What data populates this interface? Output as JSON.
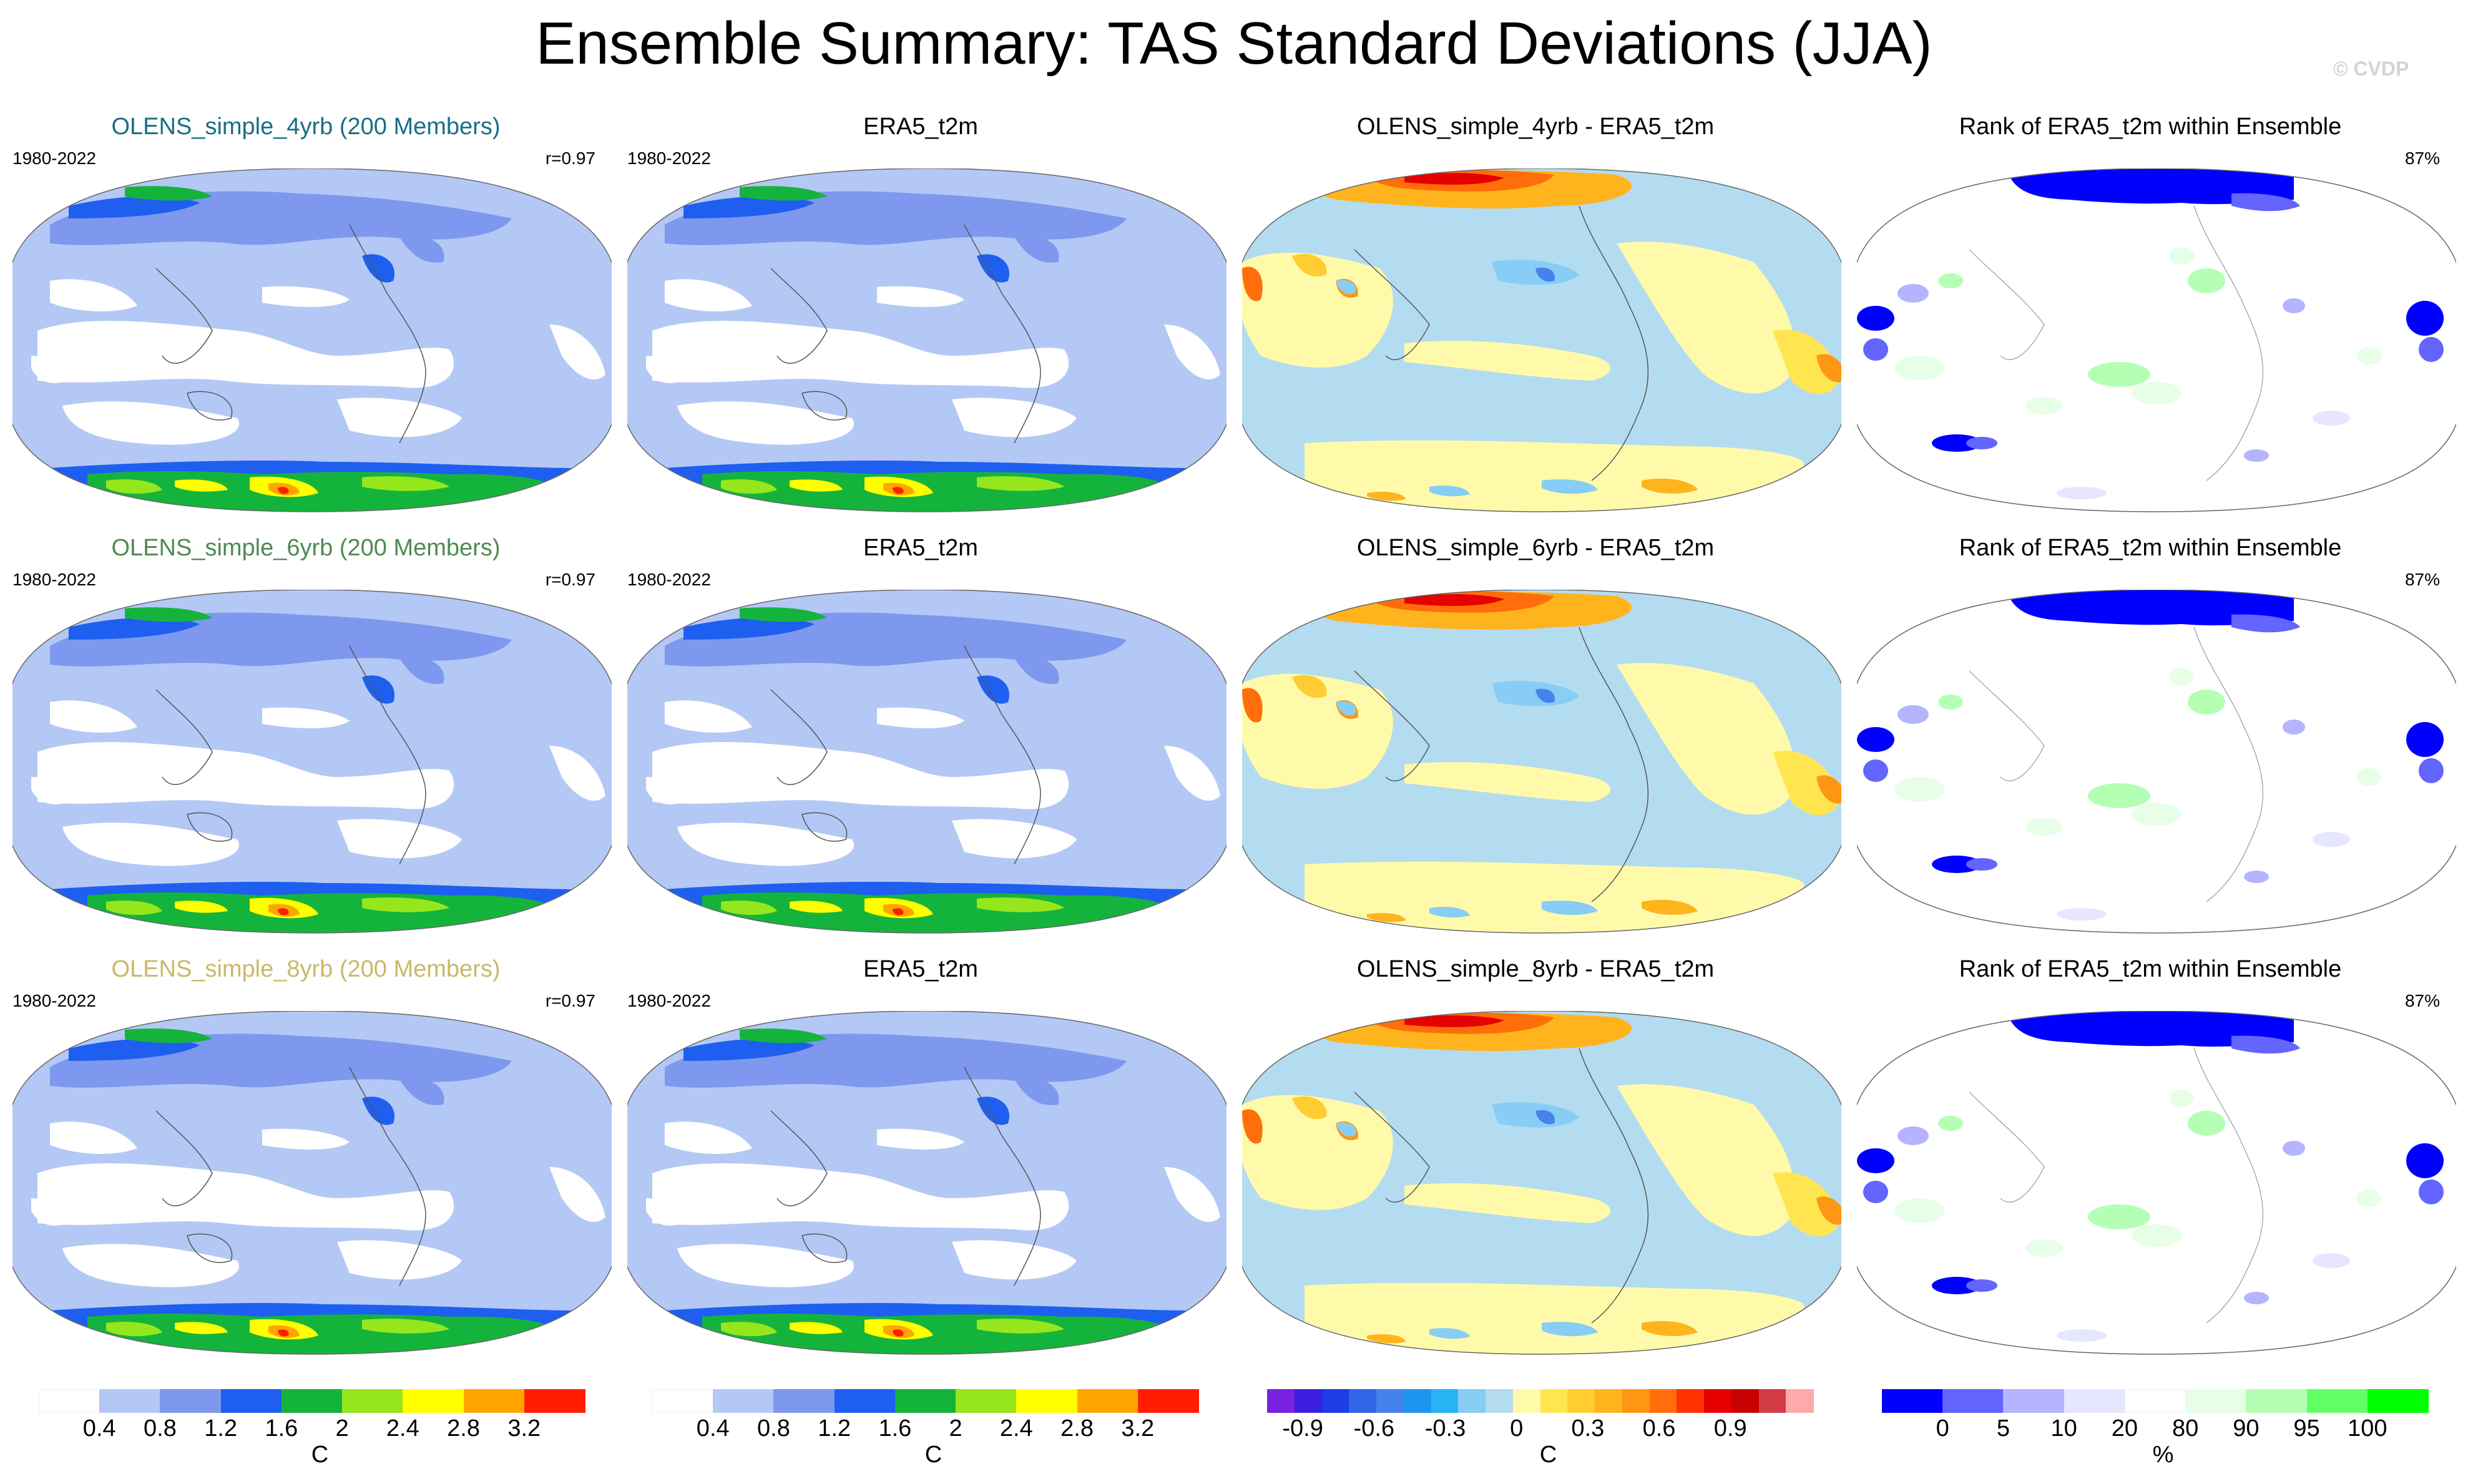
{
  "title": "Ensemble Summary: TAS Standard Deviations (JJA)",
  "copyright": "© CVDP",
  "colors": {
    "title_4yrb": "#1a6e86",
    "title_6yrb": "#4f8a52",
    "title_8yrb": "#c9b86a",
    "ocean_low": "#ffffff",
    "land_line": "#555555"
  },
  "rows": [
    {
      "model_title": "OLENS_simple_4yrb (200 Members)",
      "period_model": "1980-2022",
      "corr": "r=0.97",
      "obs_title": "ERA5_t2m",
      "period_obs": "1980-2022",
      "diff_title": "OLENS_simple_4yrb - ERA5_t2m",
      "rank_title": "Rank of ERA5_t2m within Ensemble",
      "rank_pct": "87%"
    },
    {
      "model_title": "OLENS_simple_6yrb (200 Members)",
      "period_model": "1980-2022",
      "corr": "r=0.97",
      "obs_title": "ERA5_t2m",
      "period_obs": "1980-2022",
      "diff_title": "OLENS_simple_6yrb - ERA5_t2m",
      "rank_title": "Rank of ERA5_t2m within Ensemble",
      "rank_pct": "87%"
    },
    {
      "model_title": "OLENS_simple_8yrb (200 Members)",
      "period_model": "1980-2022",
      "corr": "r=0.97",
      "obs_title": "ERA5_t2m",
      "period_obs": "1980-2022",
      "diff_title": "OLENS_simple_8yrb - ERA5_t2m",
      "rank_title": "Rank of ERA5_t2m within Ensemble",
      "rank_pct": "87%"
    }
  ],
  "colorbars": [
    {
      "name": "std",
      "colors": [
        "#ffffff",
        "#b4c8f5",
        "#7d98ee",
        "#1e5ff0",
        "#14b43c",
        "#96e61e",
        "#ffff00",
        "#ffa500",
        "#ff1e00"
      ],
      "ticks": [
        "0.4",
        "0.8",
        "1.2",
        "1.6",
        "2",
        "2.4",
        "2.8",
        "3.2"
      ],
      "unit": "C"
    },
    {
      "name": "std2",
      "colors": [
        "#ffffff",
        "#b4c8f5",
        "#7d98ee",
        "#1e5ff0",
        "#14b43c",
        "#96e61e",
        "#ffff00",
        "#ffa500",
        "#ff1e00"
      ],
      "ticks": [
        "0.4",
        "0.8",
        "1.2",
        "1.6",
        "2",
        "2.4",
        "2.8",
        "3.2"
      ],
      "unit": "C"
    },
    {
      "name": "diff",
      "colors": [
        "#7a20e0",
        "#3c1ee0",
        "#1e3ce6",
        "#3264e6",
        "#4682eb",
        "#1e96f0",
        "#28b4f5",
        "#87cdf5",
        "#b4dcf0",
        "#fffaaa",
        "#ffe650",
        "#ffcd32",
        "#ffb41e",
        "#ff9614",
        "#ff6e0a",
        "#ff3200",
        "#e60000",
        "#c80000",
        "#d23c46",
        "#ffaaaa"
      ],
      "ticks": [
        "-0.9",
        "-0.6",
        "-0.3",
        "0",
        "0.3",
        "0.6",
        "0.9"
      ],
      "unit": "C"
    },
    {
      "name": "rank",
      "colors": [
        "#0000ff",
        "#6464ff",
        "#b4b4ff",
        "#e6e6ff",
        "#ffffff",
        "#e6ffe6",
        "#b4ffb4",
        "#64ff64",
        "#00ff00"
      ],
      "ticks": [
        "0",
        "5",
        "10",
        "20",
        "80",
        "90",
        "95",
        "100"
      ],
      "unit": "%"
    }
  ],
  "chart_data": {
    "type": "heatmap",
    "title": "Ensemble Summary: TAS Standard Deviations (JJA)",
    "projection": "Robinson-like global map, Pacific-centered",
    "columns": [
      "ensemble mean std dev",
      "observed std dev",
      "difference",
      "rank of observations"
    ],
    "std_levels": [
      0.4,
      0.8,
      1.2,
      1.6,
      2,
      2.4,
      2.8,
      3.2
    ],
    "diff_levels": [
      -0.9,
      -0.6,
      -0.3,
      0,
      0.3,
      0.6,
      0.9
    ],
    "rank_levels": [
      0,
      5,
      10,
      20,
      80,
      90,
      95,
      100
    ],
    "pattern_correlation": [
      0.97,
      0.97,
      0.97
    ],
    "rank_pct_within": [
      87,
      87,
      87
    ]
  }
}
